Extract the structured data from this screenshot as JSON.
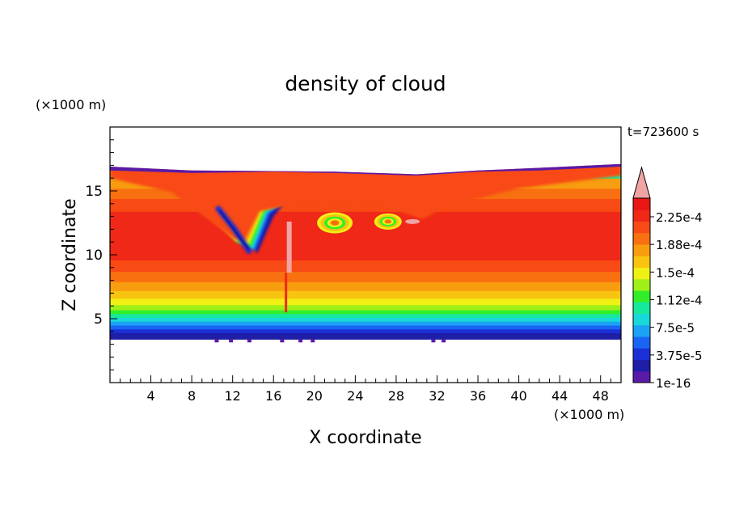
{
  "chart_data": {
    "type": "heatmap",
    "title": "density of cloud",
    "time_label": "t=723600 s",
    "xlabel": "X coordinate",
    "ylabel": "Z coordinate",
    "x_unit": "(×1000 m)",
    "y_unit": "(×1000 m)",
    "xlim": [
      0,
      50
    ],
    "ylim": [
      0,
      20
    ],
    "x_ticks": [
      4,
      8,
      12,
      16,
      20,
      24,
      28,
      32,
      36,
      40,
      44,
      48
    ],
    "y_ticks": [
      5,
      10,
      15
    ],
    "colorbar": {
      "extend": "max",
      "labels": [
        "1e-16",
        "3.75e-5",
        "7.5e-5",
        "1.12e-4",
        "1.5e-4",
        "1.88e-4",
        "2.25e-4"
      ],
      "colors": [
        "#5a1aa8",
        "#1e1ea6",
        "#1b2fd6",
        "#1a64f4",
        "#1aa2f4",
        "#18d8d8",
        "#16e89e",
        "#32ee2a",
        "#a0f018",
        "#f0f014",
        "#f8c410",
        "#f89c10",
        "#f87010",
        "#f84a14",
        "#f02818",
        "#ea1616",
        "#f0a4a4"
      ]
    },
    "cloud": {
      "base_km": 3.4,
      "top_km": 17.0,
      "layers": [
        {
          "z": [
            3.4,
            3.9
          ],
          "level": 1
        },
        {
          "z": [
            3.9,
            4.2
          ],
          "level": 2
        },
        {
          "z": [
            4.2,
            4.5
          ],
          "level": 3
        },
        {
          "z": [
            4.5,
            4.8
          ],
          "level": 4
        },
        {
          "z": [
            4.8,
            5.1
          ],
          "level": 5
        },
        {
          "z": [
            5.1,
            5.4
          ],
          "level": 6
        },
        {
          "z": [
            5.4,
            5.7
          ],
          "level": 7
        },
        {
          "z": [
            5.7,
            6.1
          ],
          "level": 8
        },
        {
          "z": [
            6.1,
            6.6
          ],
          "level": 9
        },
        {
          "z": [
            6.6,
            7.2
          ],
          "level": 10
        },
        {
          "z": [
            7.2,
            7.9
          ],
          "level": 11
        },
        {
          "z": [
            7.9,
            8.7
          ],
          "level": 12
        },
        {
          "z": [
            8.7,
            9.6
          ],
          "level": 13
        },
        {
          "z": [
            9.6,
            13.4
          ],
          "level": 14
        },
        {
          "z": [
            13.4,
            14.4
          ],
          "level": 13
        },
        {
          "z": [
            14.4,
            15.2
          ],
          "level": 12
        },
        {
          "z": [
            15.2,
            16.0
          ],
          "level": 11
        },
        {
          "z": [
            16.0,
            16.6
          ],
          "level": 6
        },
        {
          "z": [
            16.6,
            17.0
          ],
          "level": 0
        }
      ]
    }
  }
}
